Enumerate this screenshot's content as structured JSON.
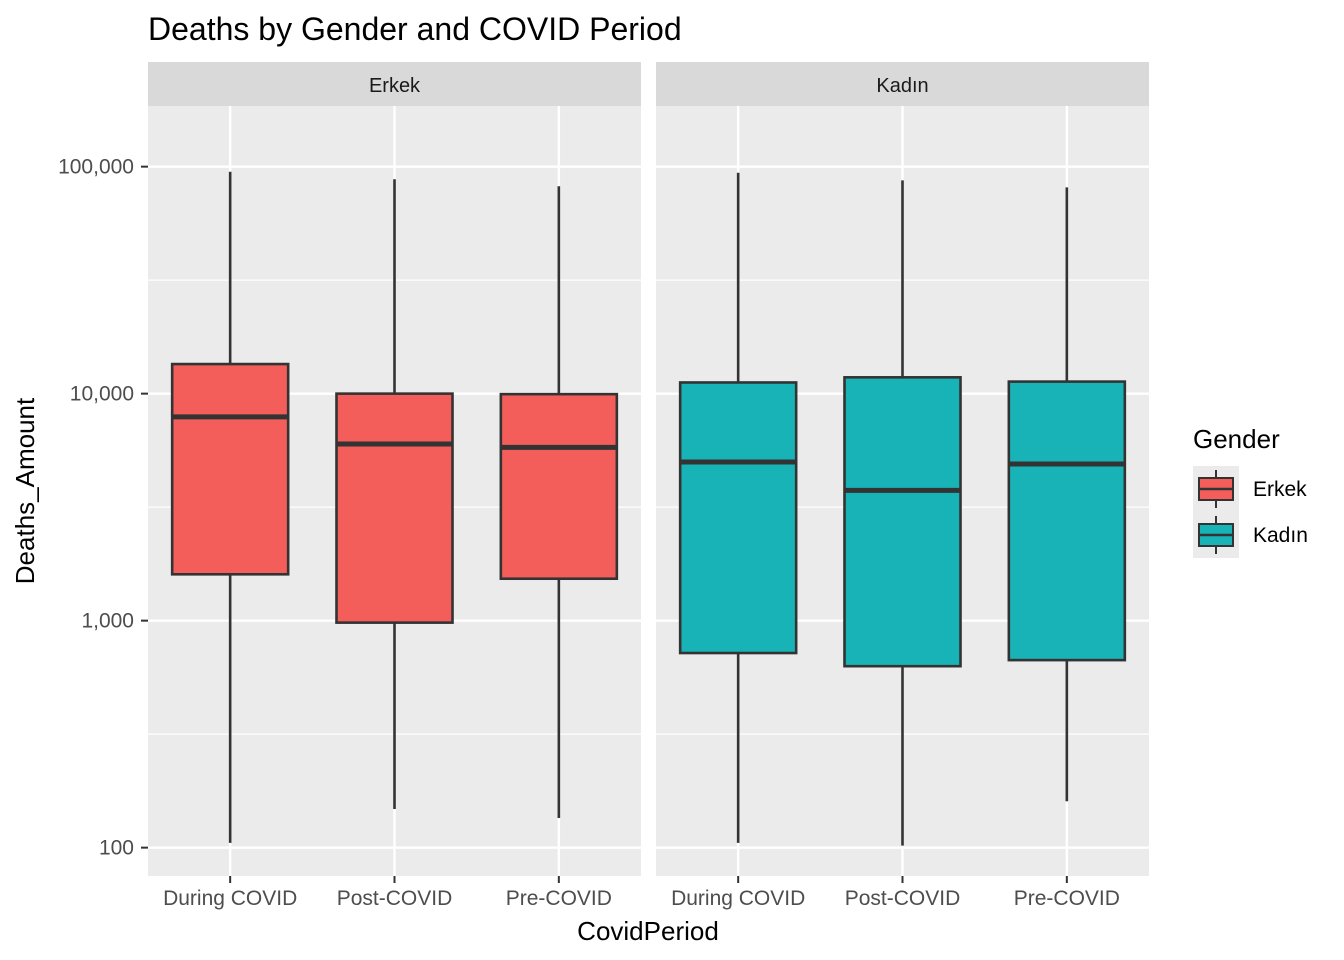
{
  "chart_data": {
    "type": "boxplot",
    "title": "Deaths by Gender and COVID Period",
    "xlabel": "CovidPeriod",
    "ylabel": "Deaths_Amount",
    "y_scale": "log10",
    "ylim": [
      75,
      185000
    ],
    "y_ticks": [
      100,
      1000,
      10000,
      100000
    ],
    "y_tick_labels": [
      "100",
      "1,000",
      "10,000",
      "100,000"
    ],
    "categories": [
      "During COVID",
      "Post-COVID",
      "Pre-COVID"
    ],
    "grid": true,
    "legend": {
      "title": "Gender",
      "position": "right",
      "entries": [
        {
          "label": "Erkek",
          "color": "#F35E5A"
        },
        {
          "label": "Kadın",
          "color": "#17B3B7"
        }
      ]
    },
    "panels": [
      {
        "label": "Erkek",
        "color": "#F35E5A",
        "boxes": [
          {
            "category": "During COVID",
            "min": 105,
            "q1": 1600,
            "median": 7900,
            "q3": 13500,
            "max": 95000
          },
          {
            "category": "Post-COVID",
            "min": 148,
            "q1": 980,
            "median": 6000,
            "q3": 10000,
            "max": 88000
          },
          {
            "category": "Pre-COVID",
            "min": 135,
            "q1": 1530,
            "median": 5800,
            "q3": 9950,
            "max": 82000
          }
        ]
      },
      {
        "label": "Kadın",
        "color": "#17B3B7",
        "boxes": [
          {
            "category": "During COVID",
            "min": 105,
            "q1": 720,
            "median": 5000,
            "q3": 11200,
            "max": 94000
          },
          {
            "category": "Post-COVID",
            "min": 102,
            "q1": 630,
            "median": 3750,
            "q3": 11800,
            "max": 87000
          },
          {
            "category": "Pre-COVID",
            "min": 160,
            "q1": 670,
            "median": 4900,
            "q3": 11300,
            "max": 81000
          }
        ]
      }
    ]
  }
}
